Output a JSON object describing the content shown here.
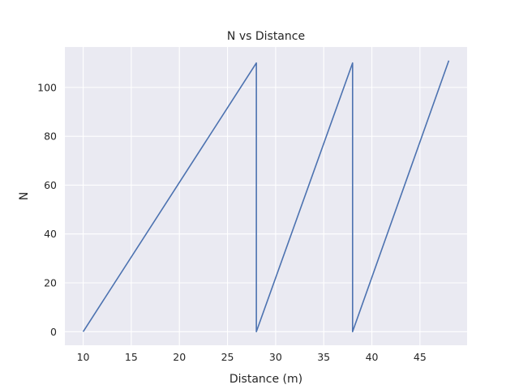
{
  "chart_data": {
    "type": "line",
    "title": "N vs Distance",
    "xlabel": "Distance (m)",
    "ylabel": "N",
    "xlim": [
      8.1,
      49.9
    ],
    "ylim": [
      -5.55,
      116.55
    ],
    "xticks": [
      10,
      15,
      20,
      25,
      30,
      35,
      40,
      45
    ],
    "yticks": [
      0,
      20,
      40,
      60,
      80,
      100
    ],
    "grid": true,
    "series": [
      {
        "color": "#4c72b0",
        "x": [
          10,
          28,
          28,
          38,
          38,
          48
        ],
        "y": [
          0,
          110,
          0,
          110,
          0,
          111
        ]
      }
    ]
  }
}
